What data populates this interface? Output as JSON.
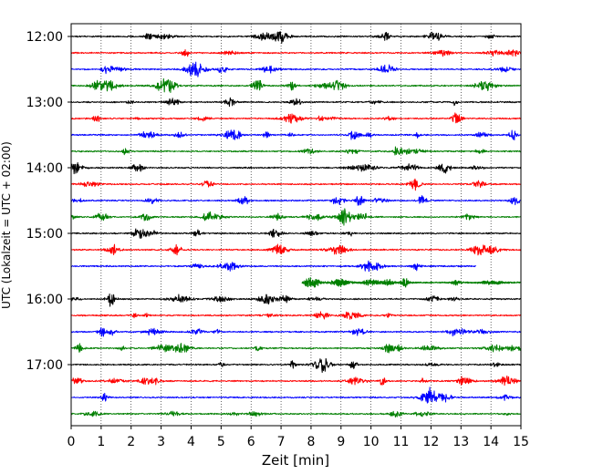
{
  "chart_data": {
    "type": "line",
    "title": "",
    "xlabel": "Zeit  [min]",
    "ylabel": "UTC (Lokalzeit = UTC + 02:00)",
    "xlim": [
      0,
      15
    ],
    "x_ticks": [
      0,
      1,
      2,
      3,
      4,
      5,
      6,
      7,
      8,
      9,
      10,
      11,
      12,
      13,
      14,
      15
    ],
    "y_tick_labels": [
      "12:00",
      "13:00",
      "14:00",
      "15:00",
      "16:00",
      "17:00"
    ],
    "grid": "vertical dotted lines at each minute",
    "trace_interval_min": 15,
    "first_trace": "12:00",
    "colors_cycle": [
      "#000000",
      "#ff0000",
      "#0000ff",
      "#007f00"
    ],
    "series": [
      {
        "start": "12:00",
        "color": "#000000",
        "data_x_range": [
          0,
          15
        ]
      },
      {
        "start": "12:15",
        "color": "#ff0000",
        "data_x_range": [
          0,
          15
        ]
      },
      {
        "start": "12:30",
        "color": "#0000ff",
        "data_x_range": [
          0,
          15
        ]
      },
      {
        "start": "12:45",
        "color": "#007f00",
        "data_x_range": [
          0,
          15
        ]
      },
      {
        "start": "13:00",
        "color": "#000000",
        "data_x_range": [
          0,
          15
        ]
      },
      {
        "start": "13:15",
        "color": "#ff0000",
        "data_x_range": [
          0,
          15
        ]
      },
      {
        "start": "13:30",
        "color": "#0000ff",
        "data_x_range": [
          0,
          15
        ]
      },
      {
        "start": "13:45",
        "color": "#007f00",
        "data_x_range": [
          0,
          15
        ]
      },
      {
        "start": "14:00",
        "color": "#000000",
        "data_x_range": [
          0,
          15
        ]
      },
      {
        "start": "14:15",
        "color": "#ff0000",
        "data_x_range": [
          0,
          15
        ]
      },
      {
        "start": "14:30",
        "color": "#0000ff",
        "data_x_range": [
          0,
          15
        ]
      },
      {
        "start": "14:45",
        "color": "#007f00",
        "data_x_range": [
          0,
          15
        ]
      },
      {
        "start": "15:00",
        "color": "#000000",
        "data_x_range": [
          0,
          15
        ]
      },
      {
        "start": "15:15",
        "color": "#ff0000",
        "data_x_range": [
          0,
          15
        ]
      },
      {
        "start": "15:30",
        "color": "#0000ff",
        "data_x_range": [
          0,
          13.5
        ]
      },
      {
        "start": "15:45",
        "color": "#007f00",
        "data_x_range": [
          7.7,
          15
        ]
      },
      {
        "start": "16:00",
        "color": "#000000",
        "data_x_range": [
          0,
          15
        ]
      },
      {
        "start": "16:15",
        "color": "#ff0000",
        "data_x_range": [
          0,
          15
        ]
      },
      {
        "start": "16:30",
        "color": "#0000ff",
        "data_x_range": [
          0,
          15
        ]
      },
      {
        "start": "16:45",
        "color": "#007f00",
        "data_x_range": [
          0,
          15
        ]
      },
      {
        "start": "17:00",
        "color": "#000000",
        "data_x_range": [
          0,
          15
        ]
      },
      {
        "start": "17:15",
        "color": "#ff0000",
        "data_x_range": [
          0,
          15
        ]
      },
      {
        "start": "17:30",
        "color": "#0000ff",
        "data_x_range": [
          0,
          15
        ]
      },
      {
        "start": "17:45",
        "color": "#007f00",
        "data_x_range": [
          0,
          15
        ]
      }
    ]
  }
}
